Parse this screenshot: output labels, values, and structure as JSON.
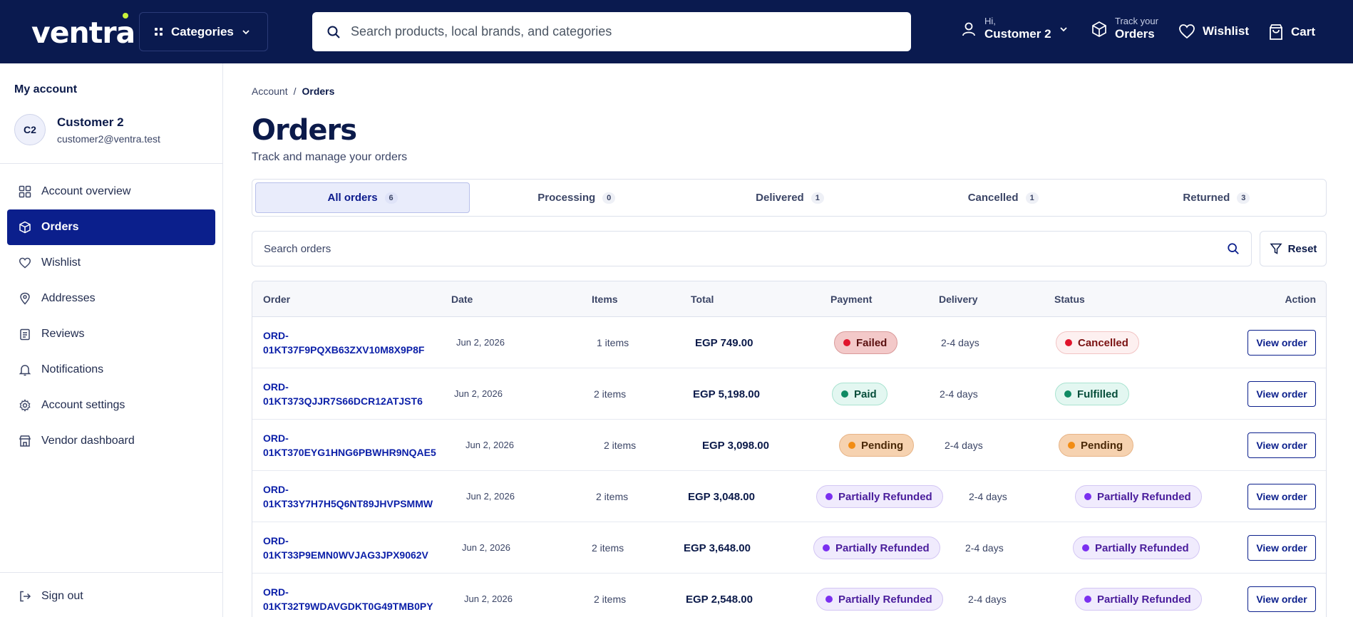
{
  "header": {
    "logo": "ventra",
    "categories_label": "Categories",
    "search_placeholder": "Search products, local brands, and categories",
    "account_greeting": "Hi,",
    "account_name": "Customer 2",
    "track_small": "Track your",
    "track_big": "Orders",
    "wishlist_label": "Wishlist",
    "cart_label": "Cart"
  },
  "sidebar": {
    "title": "My account",
    "avatar_initials": "C2",
    "user_name": "Customer 2",
    "user_email": "customer2@ventra.test",
    "items": [
      {
        "label": "Account overview",
        "icon": "grid-icon",
        "active": false
      },
      {
        "label": "Orders",
        "icon": "box-icon",
        "active": true
      },
      {
        "label": "Wishlist",
        "icon": "heart-icon",
        "active": false
      },
      {
        "label": "Addresses",
        "icon": "map-pin-icon",
        "active": false
      },
      {
        "label": "Reviews",
        "icon": "clipboard-icon",
        "active": false
      },
      {
        "label": "Notifications",
        "icon": "bell-icon",
        "active": false
      },
      {
        "label": "Account settings",
        "icon": "gear-icon",
        "active": false
      },
      {
        "label": "Vendor dashboard",
        "icon": "store-icon",
        "active": false
      }
    ],
    "sign_out": "Sign out"
  },
  "breadcrumb": {
    "root": "Account",
    "separator": "/",
    "current": "Orders"
  },
  "page": {
    "title": "Orders",
    "subtitle": "Track and manage your orders"
  },
  "tabs": [
    {
      "label": "All orders",
      "count": "6",
      "active": true
    },
    {
      "label": "Processing",
      "count": "0",
      "active": false
    },
    {
      "label": "Delivered",
      "count": "1",
      "active": false
    },
    {
      "label": "Cancelled",
      "count": "1",
      "active": false
    },
    {
      "label": "Returned",
      "count": "3",
      "active": false
    }
  ],
  "order_search": {
    "placeholder": "Search orders",
    "reset_label": "Reset"
  },
  "table": {
    "headers": {
      "order": "Order",
      "date": "Date",
      "items": "Items",
      "total": "Total",
      "payment": "Payment",
      "delivery": "Delivery",
      "status": "Status",
      "action": "Action"
    },
    "rows": [
      {
        "id_prefix": "ORD-",
        "id_rest": "01KT37F9PQXB63ZXV10M8X9P8F",
        "date": "Jun 2, 2026",
        "items": "1 items",
        "total": "EGP 749.00",
        "payment": "Failed",
        "payment_kind": "failed",
        "delivery": "2-4 days",
        "status": "Cancelled",
        "status_kind": "cancelled",
        "action": "View order"
      },
      {
        "id_prefix": "ORD-",
        "id_rest": "01KT373QJJR7S66DCR12ATJST6",
        "date": "Jun 2, 2026",
        "items": "2 items",
        "total": "EGP 5,198.00",
        "payment": "Paid",
        "payment_kind": "paid",
        "delivery": "2-4 days",
        "status": "Fulfilled",
        "status_kind": "paid",
        "action": "View order"
      },
      {
        "id_prefix": "ORD-",
        "id_rest": "01KT370EYG1HNG6PBWHR9NQAE5",
        "date": "Jun 2, 2026",
        "items": "2 items",
        "total": "EGP 3,098.00",
        "payment": "Pending",
        "payment_kind": "pending",
        "delivery": "2-4 days",
        "status": "Pending",
        "status_kind": "pending",
        "action": "View order"
      },
      {
        "id_prefix": "ORD-",
        "id_rest": "01KT33Y7H7H5Q6NT89JHVPSMMW",
        "date": "Jun 2, 2026",
        "items": "2 items",
        "total": "EGP 3,048.00",
        "payment": "Partially Refunded",
        "payment_kind": "partial",
        "delivery": "2-4 days",
        "status": "Partially Refunded",
        "status_kind": "partial",
        "action": "View order"
      },
      {
        "id_prefix": "ORD-",
        "id_rest": "01KT33P9EMN0WVJAG3JPX9062V",
        "date": "Jun 2, 2026",
        "items": "2 items",
        "total": "EGP 3,648.00",
        "payment": "Partially Refunded",
        "payment_kind": "partial",
        "delivery": "2-4 days",
        "status": "Partially Refunded",
        "status_kind": "partial",
        "action": "View order"
      },
      {
        "id_prefix": "ORD-",
        "id_rest": "01KT32T9WDAVGDKT0G49TMB0PY",
        "date": "Jun 2, 2026",
        "items": "2 items",
        "total": "EGP 2,548.00",
        "payment": "Partially Refunded",
        "payment_kind": "partial",
        "delivery": "2-4 days",
        "status": "Partially Refunded",
        "status_kind": "partial",
        "action": "View order"
      }
    ]
  },
  "colors": {
    "header_bg": "#0a1a4f",
    "accent": "#0b1f8c",
    "logo_dot": "#c8f23a"
  }
}
